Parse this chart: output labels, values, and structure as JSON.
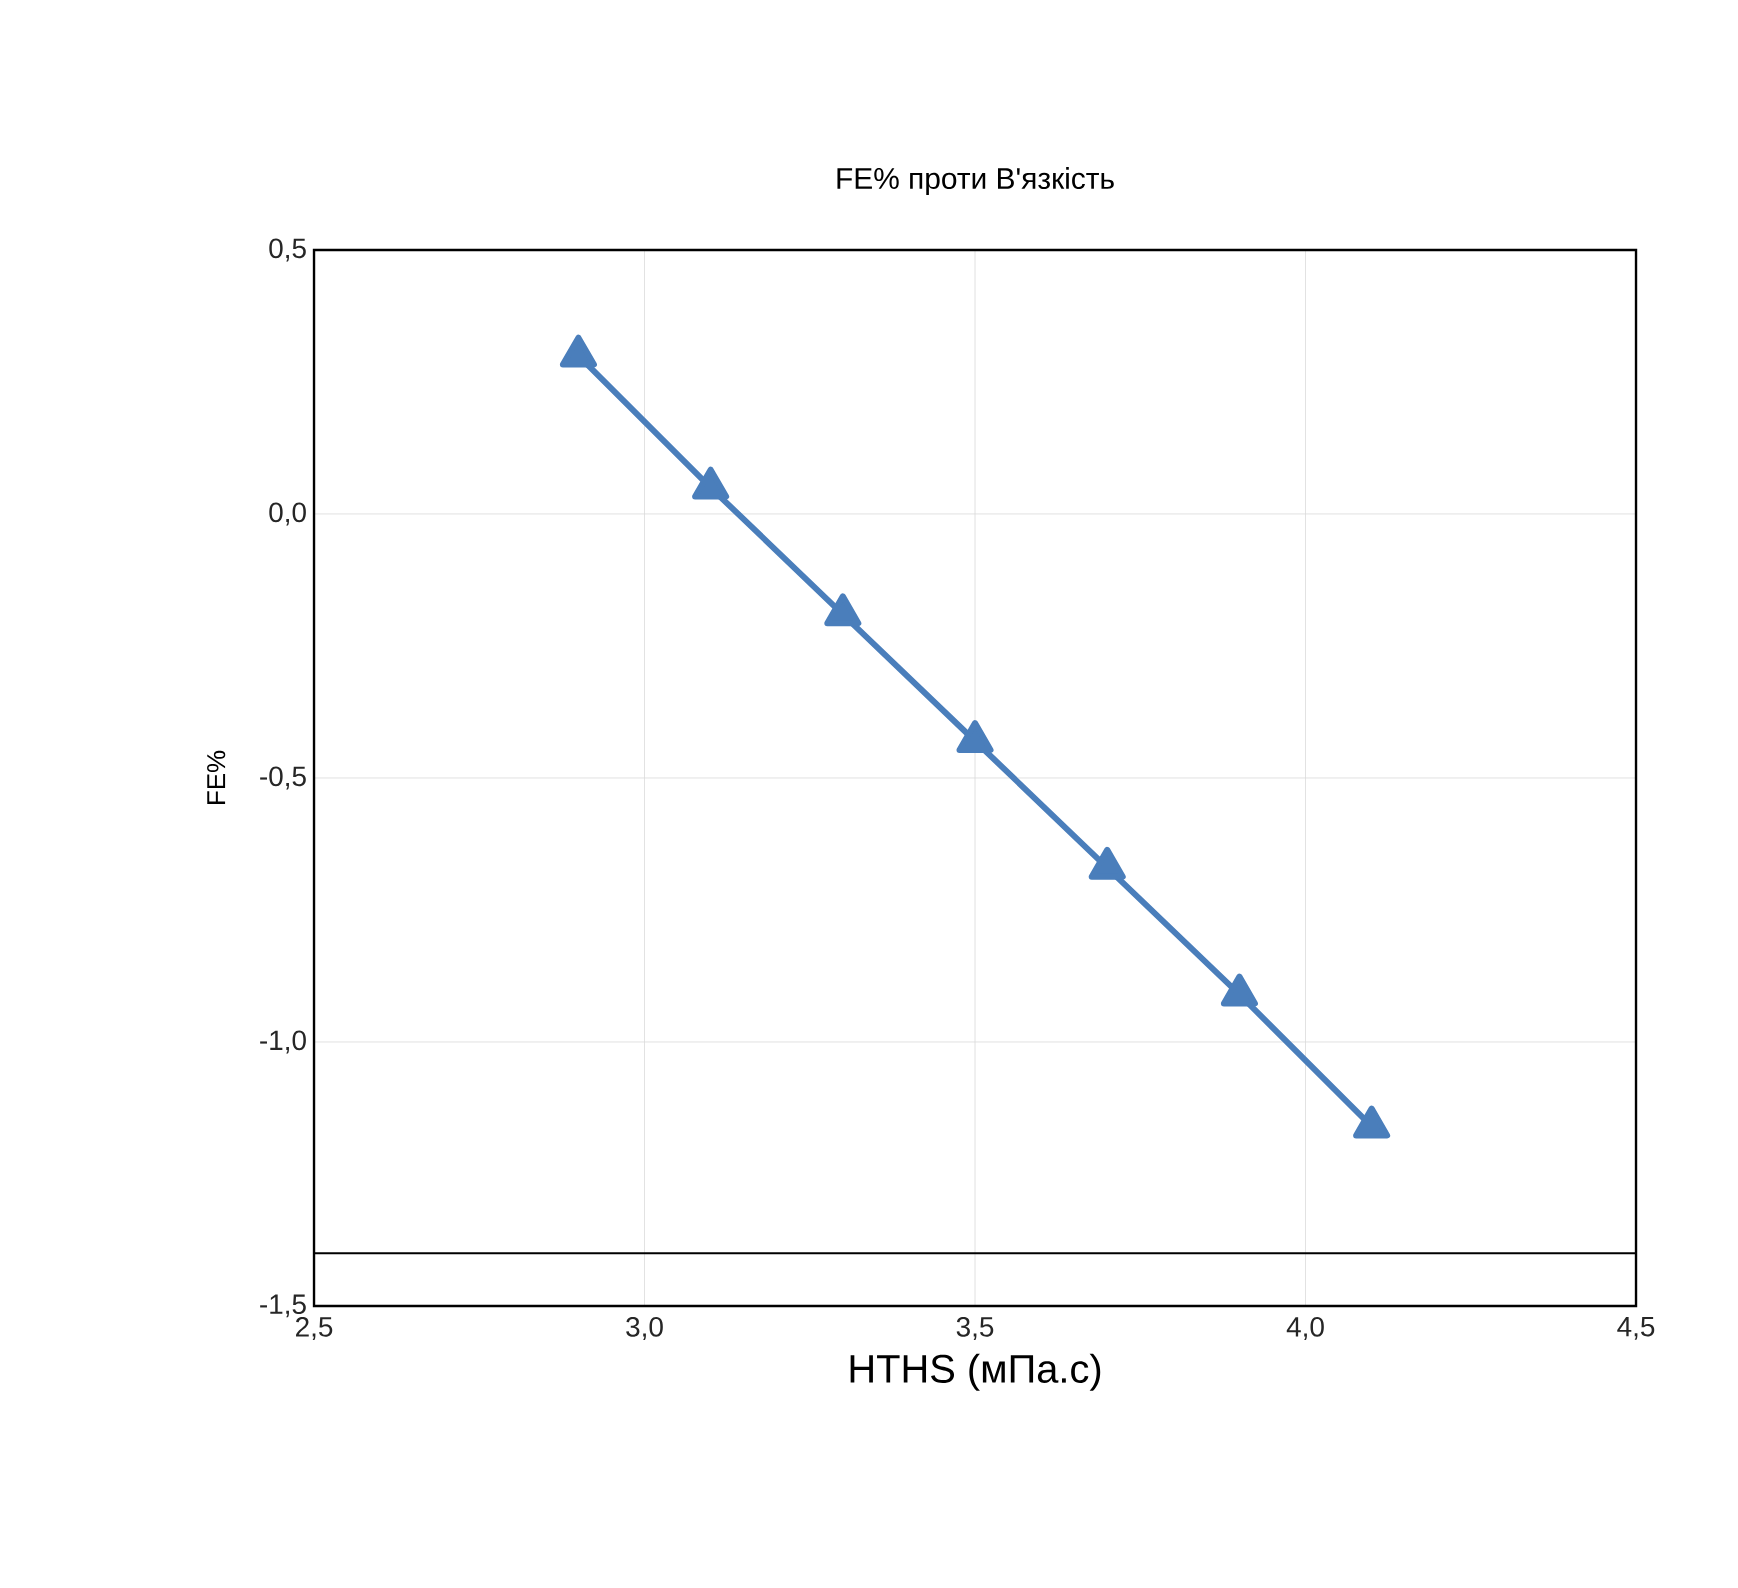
{
  "chart_data": {
    "type": "line",
    "title": "FE% проти В'язкість",
    "xlabel": "HTHS (мПа.с)",
    "ylabel": "FE%",
    "x": [
      2.9,
      3.1,
      3.3,
      3.5,
      3.7,
      3.9,
      4.1
    ],
    "series": [
      {
        "color": "#4a7ebb",
        "values": [
          0.3,
          0.05,
          -0.19,
          -0.43,
          -0.67,
          -0.91,
          -1.16
        ]
      }
    ],
    "xlim": [
      2.5,
      4.5
    ],
    "xticks": [
      {
        "value": 2.5,
        "label": "2,5"
      },
      {
        "value": 3.0,
        "label": "3,0"
      },
      {
        "value": 3.5,
        "label": "3,5"
      },
      {
        "value": 4.0,
        "label": "4,0"
      },
      {
        "value": 4.5,
        "label": "4,5"
      }
    ],
    "ylim": [
      -1.5,
      0.5
    ],
    "yticks": [
      {
        "value": -1.5,
        "label": "-1,5"
      },
      {
        "value": -1.0,
        "label": "-1,0"
      },
      {
        "value": -0.5,
        "label": "-0,5"
      },
      {
        "value": 0.0,
        "label": "0,0"
      },
      {
        "value": 0.5,
        "label": "0,5"
      }
    ],
    "ref_lines": [
      {
        "axis": "y",
        "value": -1.4,
        "color": "#000000"
      }
    ],
    "grid": true,
    "marker": "triangle",
    "line_style": "solid"
  }
}
